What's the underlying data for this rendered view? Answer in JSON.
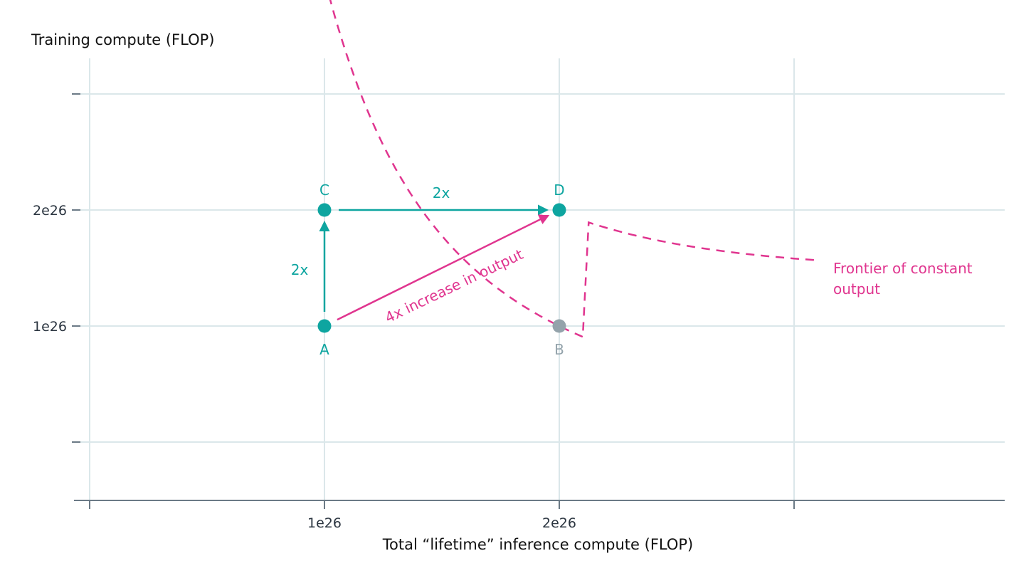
{
  "chart_data": {
    "type": "scatter",
    "title": "",
    "ylabel": "Training compute (FLOP)",
    "xlabel": "Total “lifetime” inference compute (FLOP)",
    "xlim": [
      0,
      4.3
    ],
    "ylim": [
      -0.5,
      3.3
    ],
    "grid": true,
    "x_ticks": [
      {
        "value": 0,
        "label": ""
      },
      {
        "value": 1,
        "label": "1e26"
      },
      {
        "value": 2,
        "label": "2e26"
      },
      {
        "value": 3,
        "label": ""
      }
    ],
    "y_ticks": [
      {
        "value": 0,
        "label": ""
      },
      {
        "value": 1,
        "label": "1e26"
      },
      {
        "value": 2,
        "label": "2e26"
      },
      {
        "value": 3,
        "label": ""
      }
    ],
    "points": [
      {
        "id": "A",
        "label": "A",
        "x": 1,
        "y": 1,
        "color": "#0ea5a0"
      },
      {
        "id": "B",
        "label": "B",
        "x": 2,
        "y": 1,
        "color": "#94a3ab"
      },
      {
        "id": "C",
        "label": "C",
        "x": 1,
        "y": 2,
        "color": "#0ea5a0"
      },
      {
        "id": "D",
        "label": "D",
        "x": 2,
        "y": 2,
        "color": "#0ea5a0"
      }
    ],
    "arrows": [
      {
        "id": "a-to-c",
        "from": "A",
        "to": "C",
        "label": "2x",
        "color": "#0ea5a0"
      },
      {
        "id": "c-to-d",
        "from": "C",
        "to": "D",
        "label": "2x",
        "color": "#0ea5a0"
      },
      {
        "id": "a-to-d",
        "from": "A",
        "to": "D",
        "label": "4x increase in output",
        "color": "#e0358f"
      }
    ],
    "frontier": {
      "label_lines": [
        "Frontier of constant",
        "output"
      ],
      "product": 4,
      "x_range": [
        0.8,
        2.1
      ],
      "color": "#e0358f",
      "style": "dashed"
    },
    "colors": {
      "grid": "#dbe7ea",
      "axis": "#6b7a86",
      "teal": "#0ea5a0",
      "pink": "#e0358f",
      "grey": "#94a3ab"
    }
  }
}
